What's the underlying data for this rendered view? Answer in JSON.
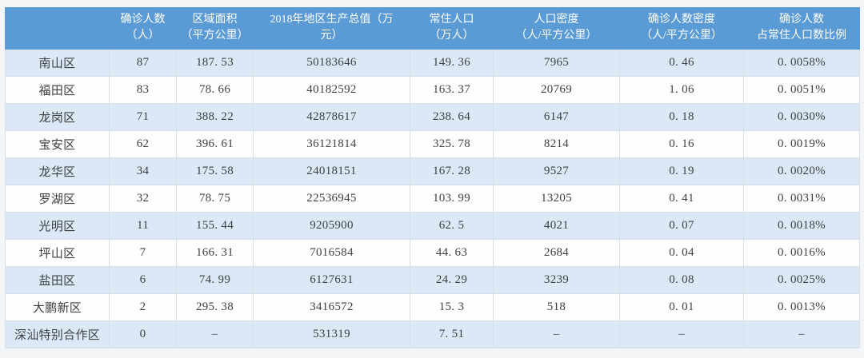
{
  "colors": {
    "page_bg": "#f4f5f6",
    "header_bg": "#5b9bd5",
    "header_text": "#ffffff",
    "row_alt_bg": "#dbe9f6",
    "row_bg": "#fefefe",
    "border": "#d9dfe6",
    "cell_text": "#3d3f42"
  },
  "chart_data": {
    "type": "table",
    "title": "",
    "columns": [
      "",
      "确诊人数\n（人）",
      "区域面积\n（平方公里）",
      "2018年地区生产总值（万\n元）",
      "常住人口\n（万人）",
      "人口密度\n（人/平方公里）",
      "确诊人数密度\n（人/平方公里）",
      "确诊人数\n占常住人口数比例"
    ],
    "rows": [
      [
        "南山区",
        "87",
        "187. 53",
        "50183646",
        "149. 36",
        "7965",
        "0. 46",
        "0. 0058%"
      ],
      [
        "福田区",
        "83",
        "78. 66",
        "40182592",
        "163. 37",
        "20769",
        "1. 06",
        "0. 0051%"
      ],
      [
        "龙岗区",
        "71",
        "388. 22",
        "42878617",
        "238. 64",
        "6147",
        "0. 18",
        "0. 0030%"
      ],
      [
        "宝安区",
        "62",
        "396. 61",
        "36121814",
        "325. 78",
        "8214",
        "0. 16",
        "0. 0019%"
      ],
      [
        "龙华区",
        "34",
        "175. 58",
        "24018151",
        "167. 28",
        "9527",
        "0. 19",
        "0. 0020%"
      ],
      [
        "罗湖区",
        "32",
        "78. 75",
        "22536945",
        "103. 99",
        "13205",
        "0. 41",
        "0. 0031%"
      ],
      [
        "光明区",
        "11",
        "155. 44",
        "9205900",
        "62. 5",
        "4021",
        "0. 07",
        "0. 0018%"
      ],
      [
        "坪山区",
        "7",
        "166. 31",
        "7016584",
        "44. 63",
        "2684",
        "0. 04",
        "0. 0016%"
      ],
      [
        "盐田区",
        "6",
        "74. 99",
        "6127631",
        "24. 29",
        "3239",
        "0. 08",
        "0. 0025%"
      ],
      [
        "大鹏新区",
        "2",
        "295. 38",
        "3416572",
        "15. 3",
        "518",
        "0. 01",
        "0. 0013%"
      ],
      [
        "深汕特别合作区",
        "0",
        "–",
        "531319",
        "7. 51",
        "–",
        "–",
        "–"
      ]
    ]
  }
}
